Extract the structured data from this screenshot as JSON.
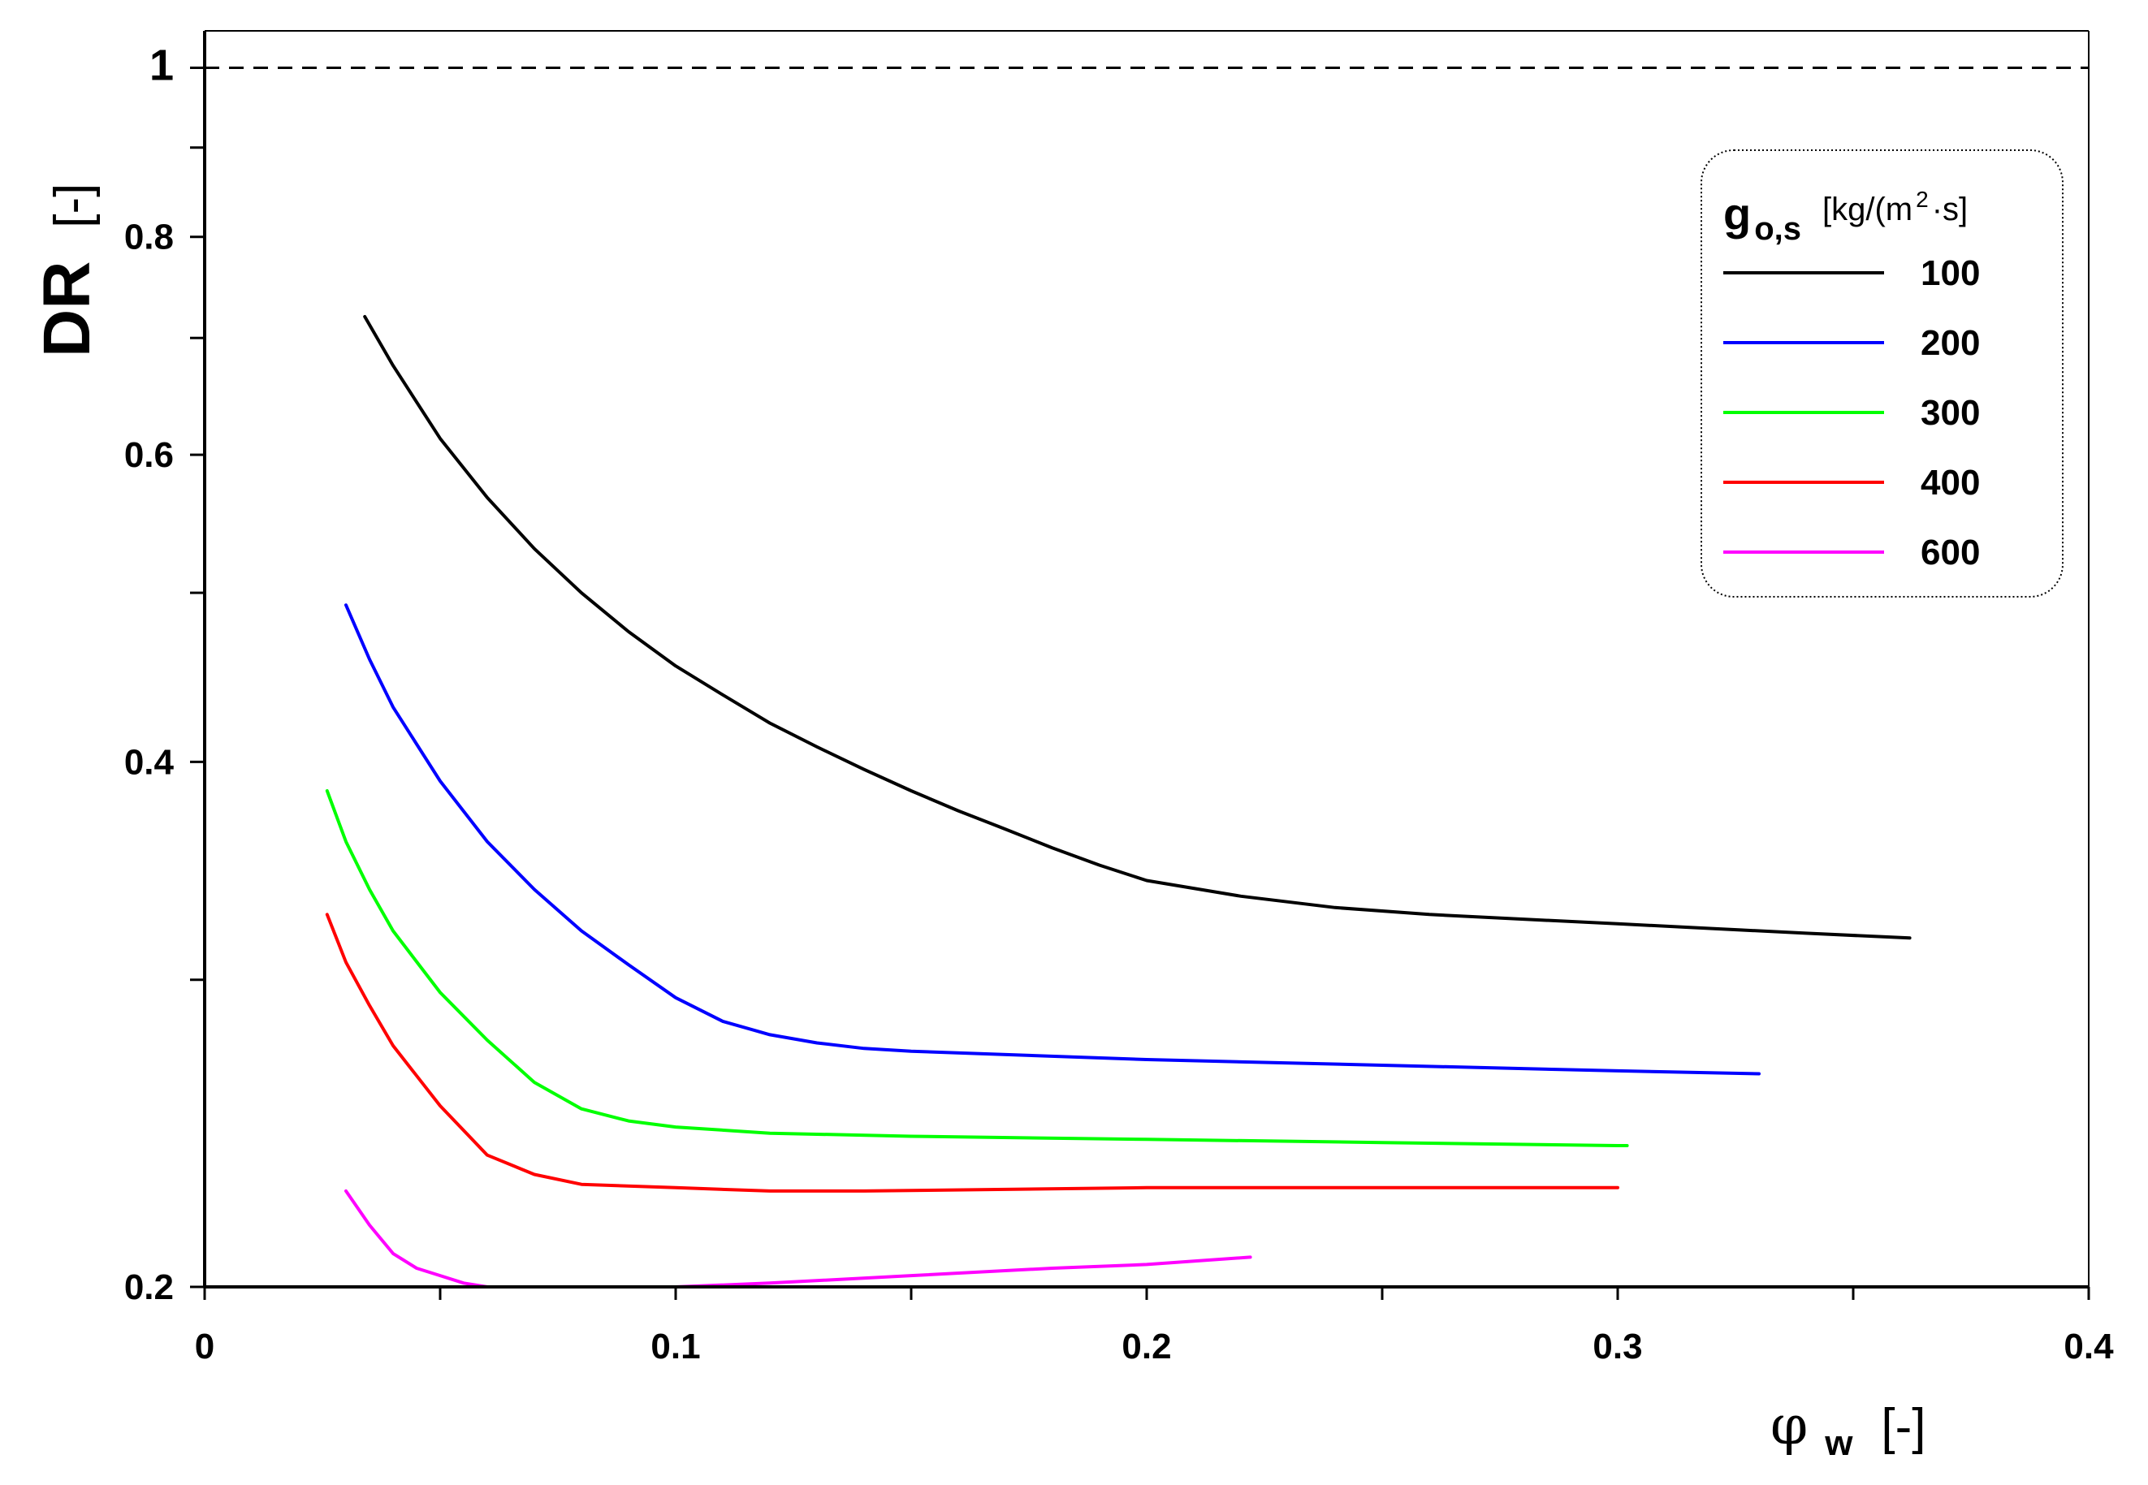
{
  "chart_data": {
    "type": "line",
    "title": "",
    "xlabel": {
      "symbol": "φ",
      "subscript": "w",
      "unit": "[-]"
    },
    "ylabel": {
      "symbol": "DR",
      "unit": "[-]"
    },
    "xlim": [
      0,
      0.4
    ],
    "ylim": [
      0.2,
      1.05
    ],
    "y_scale": "log",
    "x_major_ticks": [
      0,
      0.1,
      0.2,
      0.3,
      0.4
    ],
    "x_minor_ticks": [
      0.05,
      0.15,
      0.25,
      0.35
    ],
    "x_tick_labels": [
      "0",
      "0.1",
      "0.2",
      "0.3",
      "0.4"
    ],
    "y_major_ticks": [
      0.2,
      0.4,
      0.6,
      0.8,
      1
    ],
    "y_minor_ticks": [
      0.3,
      0.5,
      0.7,
      0.9
    ],
    "y_tick_labels": [
      "0.2",
      "0.4",
      "0.6",
      "0.8",
      "1"
    ],
    "reference_line": {
      "y": 1,
      "style": "dashed",
      "color": "#000000"
    },
    "legend": {
      "title_symbol": "g",
      "title_subscript": "o,s",
      "title_unit_prefix": "[kg/(m",
      "title_unit_sup": "2",
      "title_unit_suffix": "·s]",
      "position": "top-right"
    },
    "series": [
      {
        "name": "100",
        "color": "#000000",
        "x": [
          0.034,
          0.04,
          0.05,
          0.06,
          0.07,
          0.08,
          0.09,
          0.1,
          0.11,
          0.12,
          0.13,
          0.14,
          0.15,
          0.16,
          0.17,
          0.18,
          0.19,
          0.2,
          0.22,
          0.24,
          0.26,
          0.28,
          0.3,
          0.32,
          0.34,
          0.362
        ],
        "y": [
          0.72,
          0.675,
          0.613,
          0.567,
          0.53,
          0.5,
          0.475,
          0.454,
          0.437,
          0.421,
          0.408,
          0.396,
          0.385,
          0.375,
          0.366,
          0.357,
          0.349,
          0.342,
          0.335,
          0.33,
          0.327,
          0.325,
          0.323,
          0.321,
          0.319,
          0.317
        ]
      },
      {
        "name": "200",
        "color": "#0000ff",
        "x": [
          0.03,
          0.035,
          0.04,
          0.05,
          0.06,
          0.07,
          0.08,
          0.09,
          0.1,
          0.11,
          0.12,
          0.13,
          0.14,
          0.15,
          0.2,
          0.25,
          0.3,
          0.33
        ],
        "y": [
          0.492,
          0.458,
          0.43,
          0.39,
          0.36,
          0.338,
          0.32,
          0.306,
          0.293,
          0.284,
          0.279,
          0.276,
          0.274,
          0.273,
          0.27,
          0.268,
          0.266,
          0.265
        ]
      },
      {
        "name": "300",
        "color": "#00ff00",
        "x": [
          0.026,
          0.03,
          0.035,
          0.04,
          0.05,
          0.06,
          0.07,
          0.08,
          0.09,
          0.1,
          0.12,
          0.15,
          0.2,
          0.25,
          0.3,
          0.302
        ],
        "y": [
          0.385,
          0.36,
          0.338,
          0.32,
          0.295,
          0.277,
          0.262,
          0.253,
          0.249,
          0.247,
          0.245,
          0.244,
          0.243,
          0.242,
          0.241,
          0.241
        ]
      },
      {
        "name": "400",
        "color": "#ff0000",
        "x": [
          0.026,
          0.03,
          0.035,
          0.04,
          0.05,
          0.06,
          0.07,
          0.08,
          0.1,
          0.12,
          0.14,
          0.2,
          0.25,
          0.3
        ],
        "y": [
          0.327,
          0.307,
          0.29,
          0.275,
          0.254,
          0.238,
          0.232,
          0.229,
          0.228,
          0.227,
          0.227,
          0.228,
          0.228,
          0.228
        ]
      },
      {
        "name": "600",
        "color": "#ff00ff",
        "x": [
          0.03,
          0.035,
          0.04,
          0.045,
          0.05,
          0.055,
          0.06,
          0.07,
          0.08,
          0.1,
          0.12,
          0.15,
          0.18,
          0.2,
          0.222
        ],
        "y": [
          0.227,
          0.217,
          0.209,
          0.205,
          0.203,
          0.201,
          0.2,
          0.2,
          0.2,
          0.2,
          0.201,
          0.203,
          0.205,
          0.206,
          0.208
        ]
      }
    ]
  }
}
